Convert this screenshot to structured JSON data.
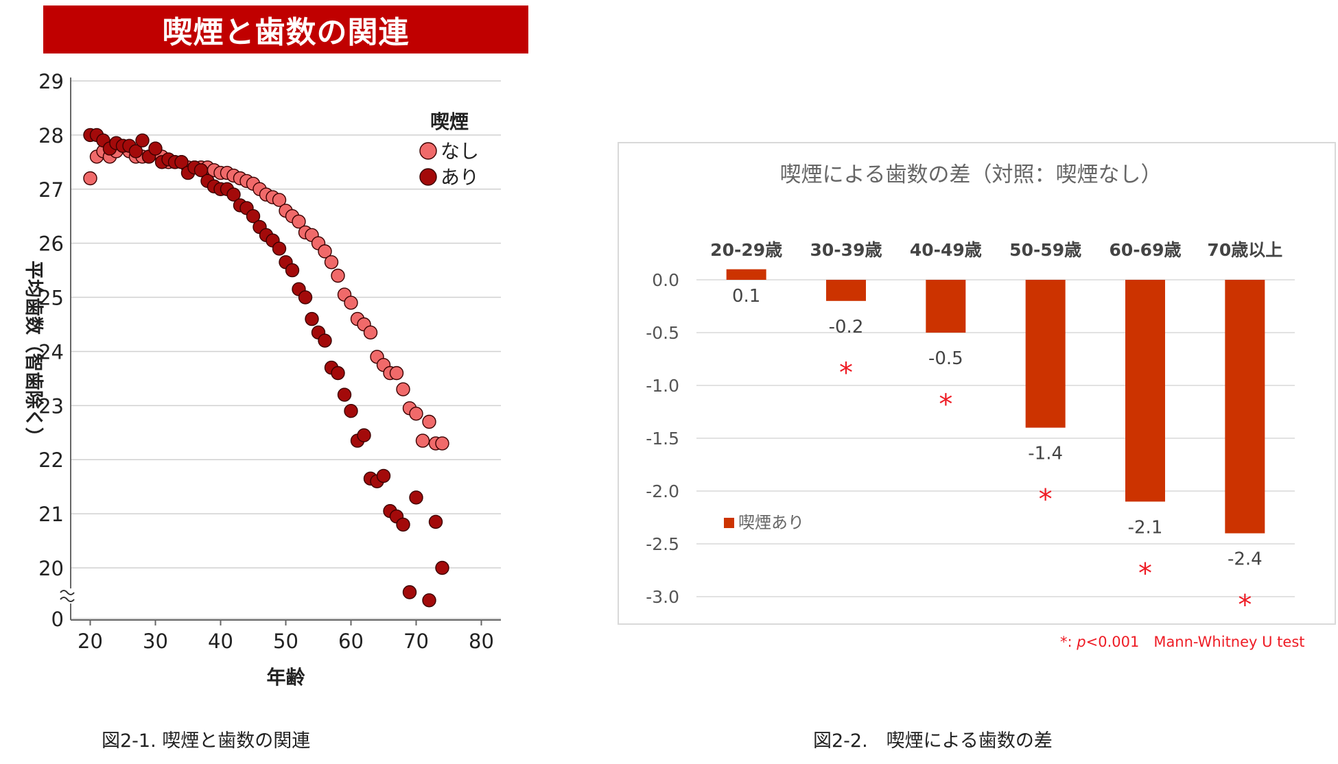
{
  "banner_title": "喫煙と歯数の関連",
  "captions": {
    "left": "図2-1. 喫煙と歯数の関連",
    "right": "図2-2.　喫煙による歯数の差"
  },
  "footnote": {
    "star": "*: ",
    "p": "p",
    "rest": "<0.001　Mann-Whitney U test"
  },
  "chart_data": [
    {
      "type": "scatter",
      "title": "喫煙と歯数の関連",
      "xlabel": "年齢",
      "ylabel": "平均歯数（智歯除く）",
      "xlim": [
        17,
        83
      ],
      "ylim": [
        19,
        29
      ],
      "xticks": [
        "20",
        "30",
        "40",
        "50",
        "60",
        "70",
        "80"
      ],
      "yticks": [
        "29",
        "28",
        "27",
        "26",
        "25",
        "24",
        "23",
        "22",
        "21",
        "20"
      ],
      "y_break_label": "0",
      "legend_title": "喫煙",
      "colors": {
        "nashi": "#f06a6a",
        "ari": "#a30a0a"
      },
      "series": [
        {
          "name": "なし",
          "points": [
            [
              20,
              27.2
            ],
            [
              21,
              27.6
            ],
            [
              22,
              27.7
            ],
            [
              23,
              27.6
            ],
            [
              24,
              27.7
            ],
            [
              25,
              27.8
            ],
            [
              26,
              27.7
            ],
            [
              27,
              27.6
            ],
            [
              28,
              27.6
            ],
            [
              29,
              27.6
            ],
            [
              30,
              27.7
            ],
            [
              31,
              27.6
            ],
            [
              32,
              27.5
            ],
            [
              33,
              27.5
            ],
            [
              34,
              27.5
            ],
            [
              35,
              27.4
            ],
            [
              36,
              27.4
            ],
            [
              37,
              27.4
            ],
            [
              38,
              27.4
            ],
            [
              39,
              27.35
            ],
            [
              40,
              27.3
            ],
            [
              41,
              27.3
            ],
            [
              42,
              27.25
            ],
            [
              43,
              27.2
            ],
            [
              44,
              27.15
            ],
            [
              45,
              27.1
            ],
            [
              46,
              27.0
            ],
            [
              47,
              26.9
            ],
            [
              48,
              26.85
            ],
            [
              49,
              26.8
            ],
            [
              50,
              26.6
            ],
            [
              51,
              26.5
            ],
            [
              52,
              26.4
            ],
            [
              53,
              26.2
            ],
            [
              54,
              26.15
            ],
            [
              55,
              26.0
            ],
            [
              56,
              25.85
            ],
            [
              57,
              25.65
            ],
            [
              58,
              25.4
            ],
            [
              59,
              25.05
            ],
            [
              60,
              24.9
            ],
            [
              61,
              24.6
            ],
            [
              62,
              24.5
            ],
            [
              63,
              24.35
            ],
            [
              64,
              23.9
            ],
            [
              65,
              23.75
            ],
            [
              66,
              23.6
            ],
            [
              67,
              23.6
            ],
            [
              68,
              23.3
            ],
            [
              69,
              22.95
            ],
            [
              70,
              22.85
            ],
            [
              71,
              22.35
            ],
            [
              72,
              22.7
            ],
            [
              73,
              22.3
            ],
            [
              74,
              22.3
            ]
          ]
        },
        {
          "name": "あり",
          "points": [
            [
              20,
              28.0
            ],
            [
              21,
              28.0
            ],
            [
              22,
              27.9
            ],
            [
              23,
              27.75
            ],
            [
              24,
              27.85
            ],
            [
              25,
              27.8
            ],
            [
              26,
              27.8
            ],
            [
              27,
              27.7
            ],
            [
              28,
              27.9
            ],
            [
              29,
              27.6
            ],
            [
              30,
              27.75
            ],
            [
              31,
              27.5
            ],
            [
              32,
              27.55
            ],
            [
              33,
              27.5
            ],
            [
              34,
              27.5
            ],
            [
              35,
              27.3
            ],
            [
              36,
              27.4
            ],
            [
              37,
              27.35
            ],
            [
              38,
              27.15
            ],
            [
              39,
              27.05
            ],
            [
              40,
              27.0
            ],
            [
              41,
              27.0
            ],
            [
              42,
              26.9
            ],
            [
              43,
              26.7
            ],
            [
              44,
              26.65
            ],
            [
              45,
              26.5
            ],
            [
              46,
              26.3
            ],
            [
              47,
              26.15
            ],
            [
              48,
              26.05
            ],
            [
              49,
              25.9
            ],
            [
              50,
              25.65
            ],
            [
              51,
              25.5
            ],
            [
              52,
              25.15
            ],
            [
              53,
              25.0
            ],
            [
              54,
              24.6
            ],
            [
              55,
              24.35
            ],
            [
              56,
              24.2
            ],
            [
              57,
              23.7
            ],
            [
              58,
              23.6
            ],
            [
              59,
              23.2
            ],
            [
              60,
              22.9
            ],
            [
              61,
              22.35
            ],
            [
              62,
              22.45
            ],
            [
              63,
              21.65
            ],
            [
              64,
              21.6
            ],
            [
              65,
              21.7
            ],
            [
              66,
              21.05
            ],
            [
              67,
              20.95
            ],
            [
              68,
              20.8
            ],
            [
              69,
              19.55
            ],
            [
              70,
              21.3
            ],
            [
              72,
              19.4
            ],
            [
              73,
              20.85
            ],
            [
              74,
              20.0
            ]
          ]
        }
      ]
    },
    {
      "type": "bar",
      "title": "喫煙による歯数の差（対照：喫煙なし）",
      "categories": [
        "20-29歳",
        "30-39歳",
        "40-49歳",
        "50-59歳",
        "60-69歳",
        "70歳以上"
      ],
      "series": [
        {
          "name": "喫煙あり",
          "values": [
            0.1,
            -0.2,
            -0.5,
            -1.4,
            -2.1,
            -2.4
          ],
          "labels": [
            "0.1",
            "-0.2",
            "-0.5",
            "-1.4",
            "-2.1",
            "-2.4"
          ]
        }
      ],
      "significant": [
        false,
        true,
        true,
        true,
        true,
        true
      ],
      "significance_mark": "*",
      "ylim": [
        -3.0,
        0.0
      ],
      "yticks": [
        "0.0",
        "-0.5",
        "-1.0",
        "-1.5",
        "-2.0",
        "-2.5",
        "-3.0"
      ],
      "bar_color": "#cc3300",
      "star_color": "#ee1c25"
    }
  ]
}
